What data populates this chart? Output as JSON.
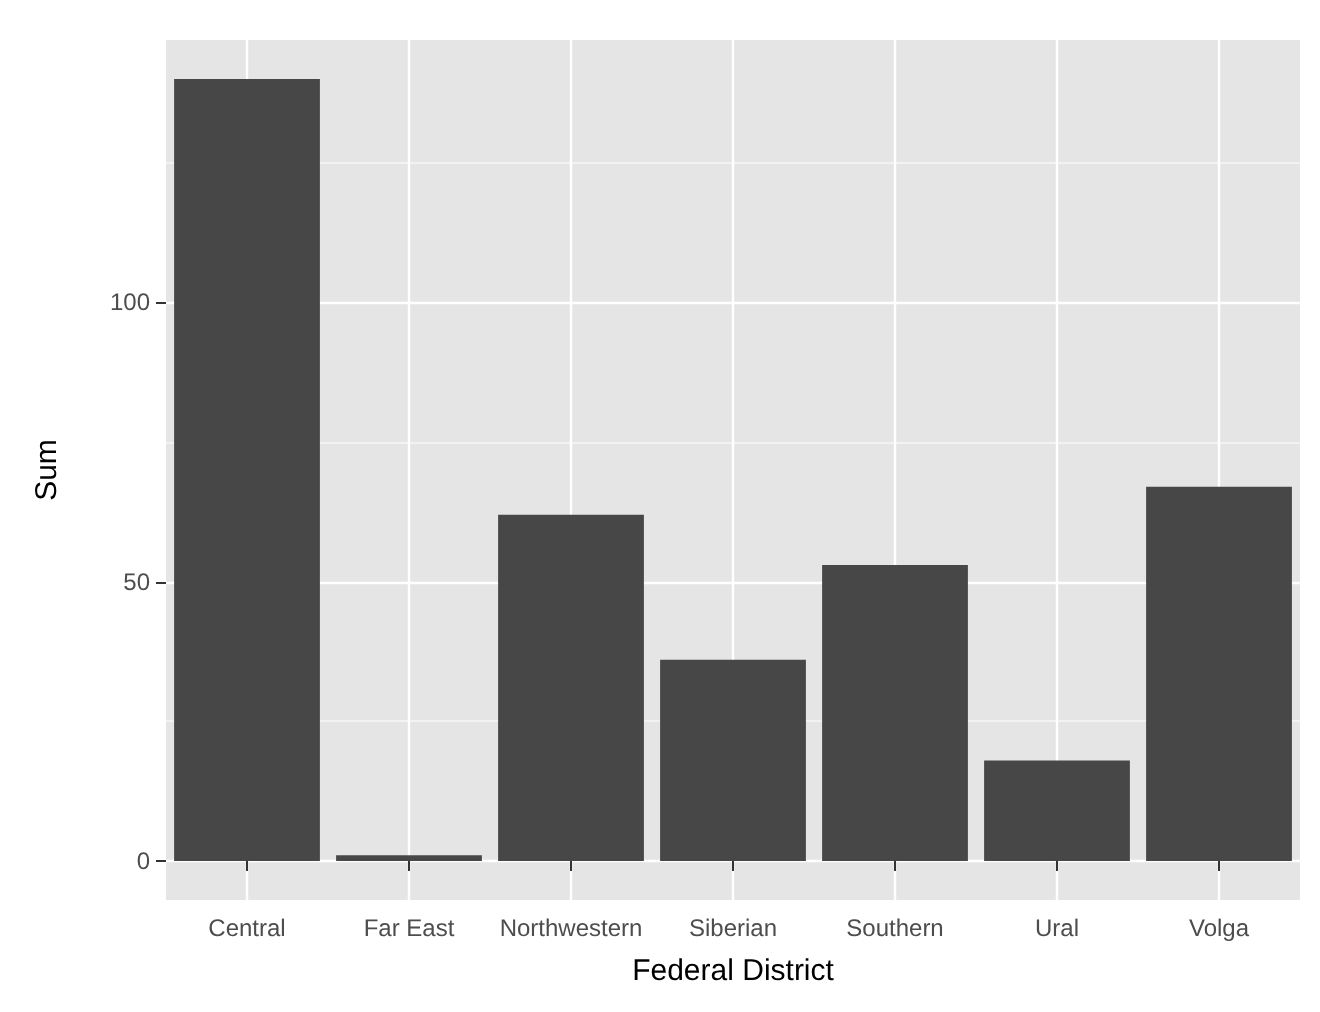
{
  "chart_data": {
    "type": "bar",
    "xlabel": "Federal District",
    "ylabel": "Sum",
    "categories": [
      "Central",
      "Far East",
      "Northwestern",
      "Siberian",
      "Southern",
      "Ural",
      "Volga"
    ],
    "values": [
      140,
      1,
      62,
      36,
      53,
      18,
      67
    ],
    "color": "#474747",
    "ylim": [
      -7,
      147
    ],
    "yticks": [
      0,
      50,
      100
    ],
    "grid": true
  }
}
